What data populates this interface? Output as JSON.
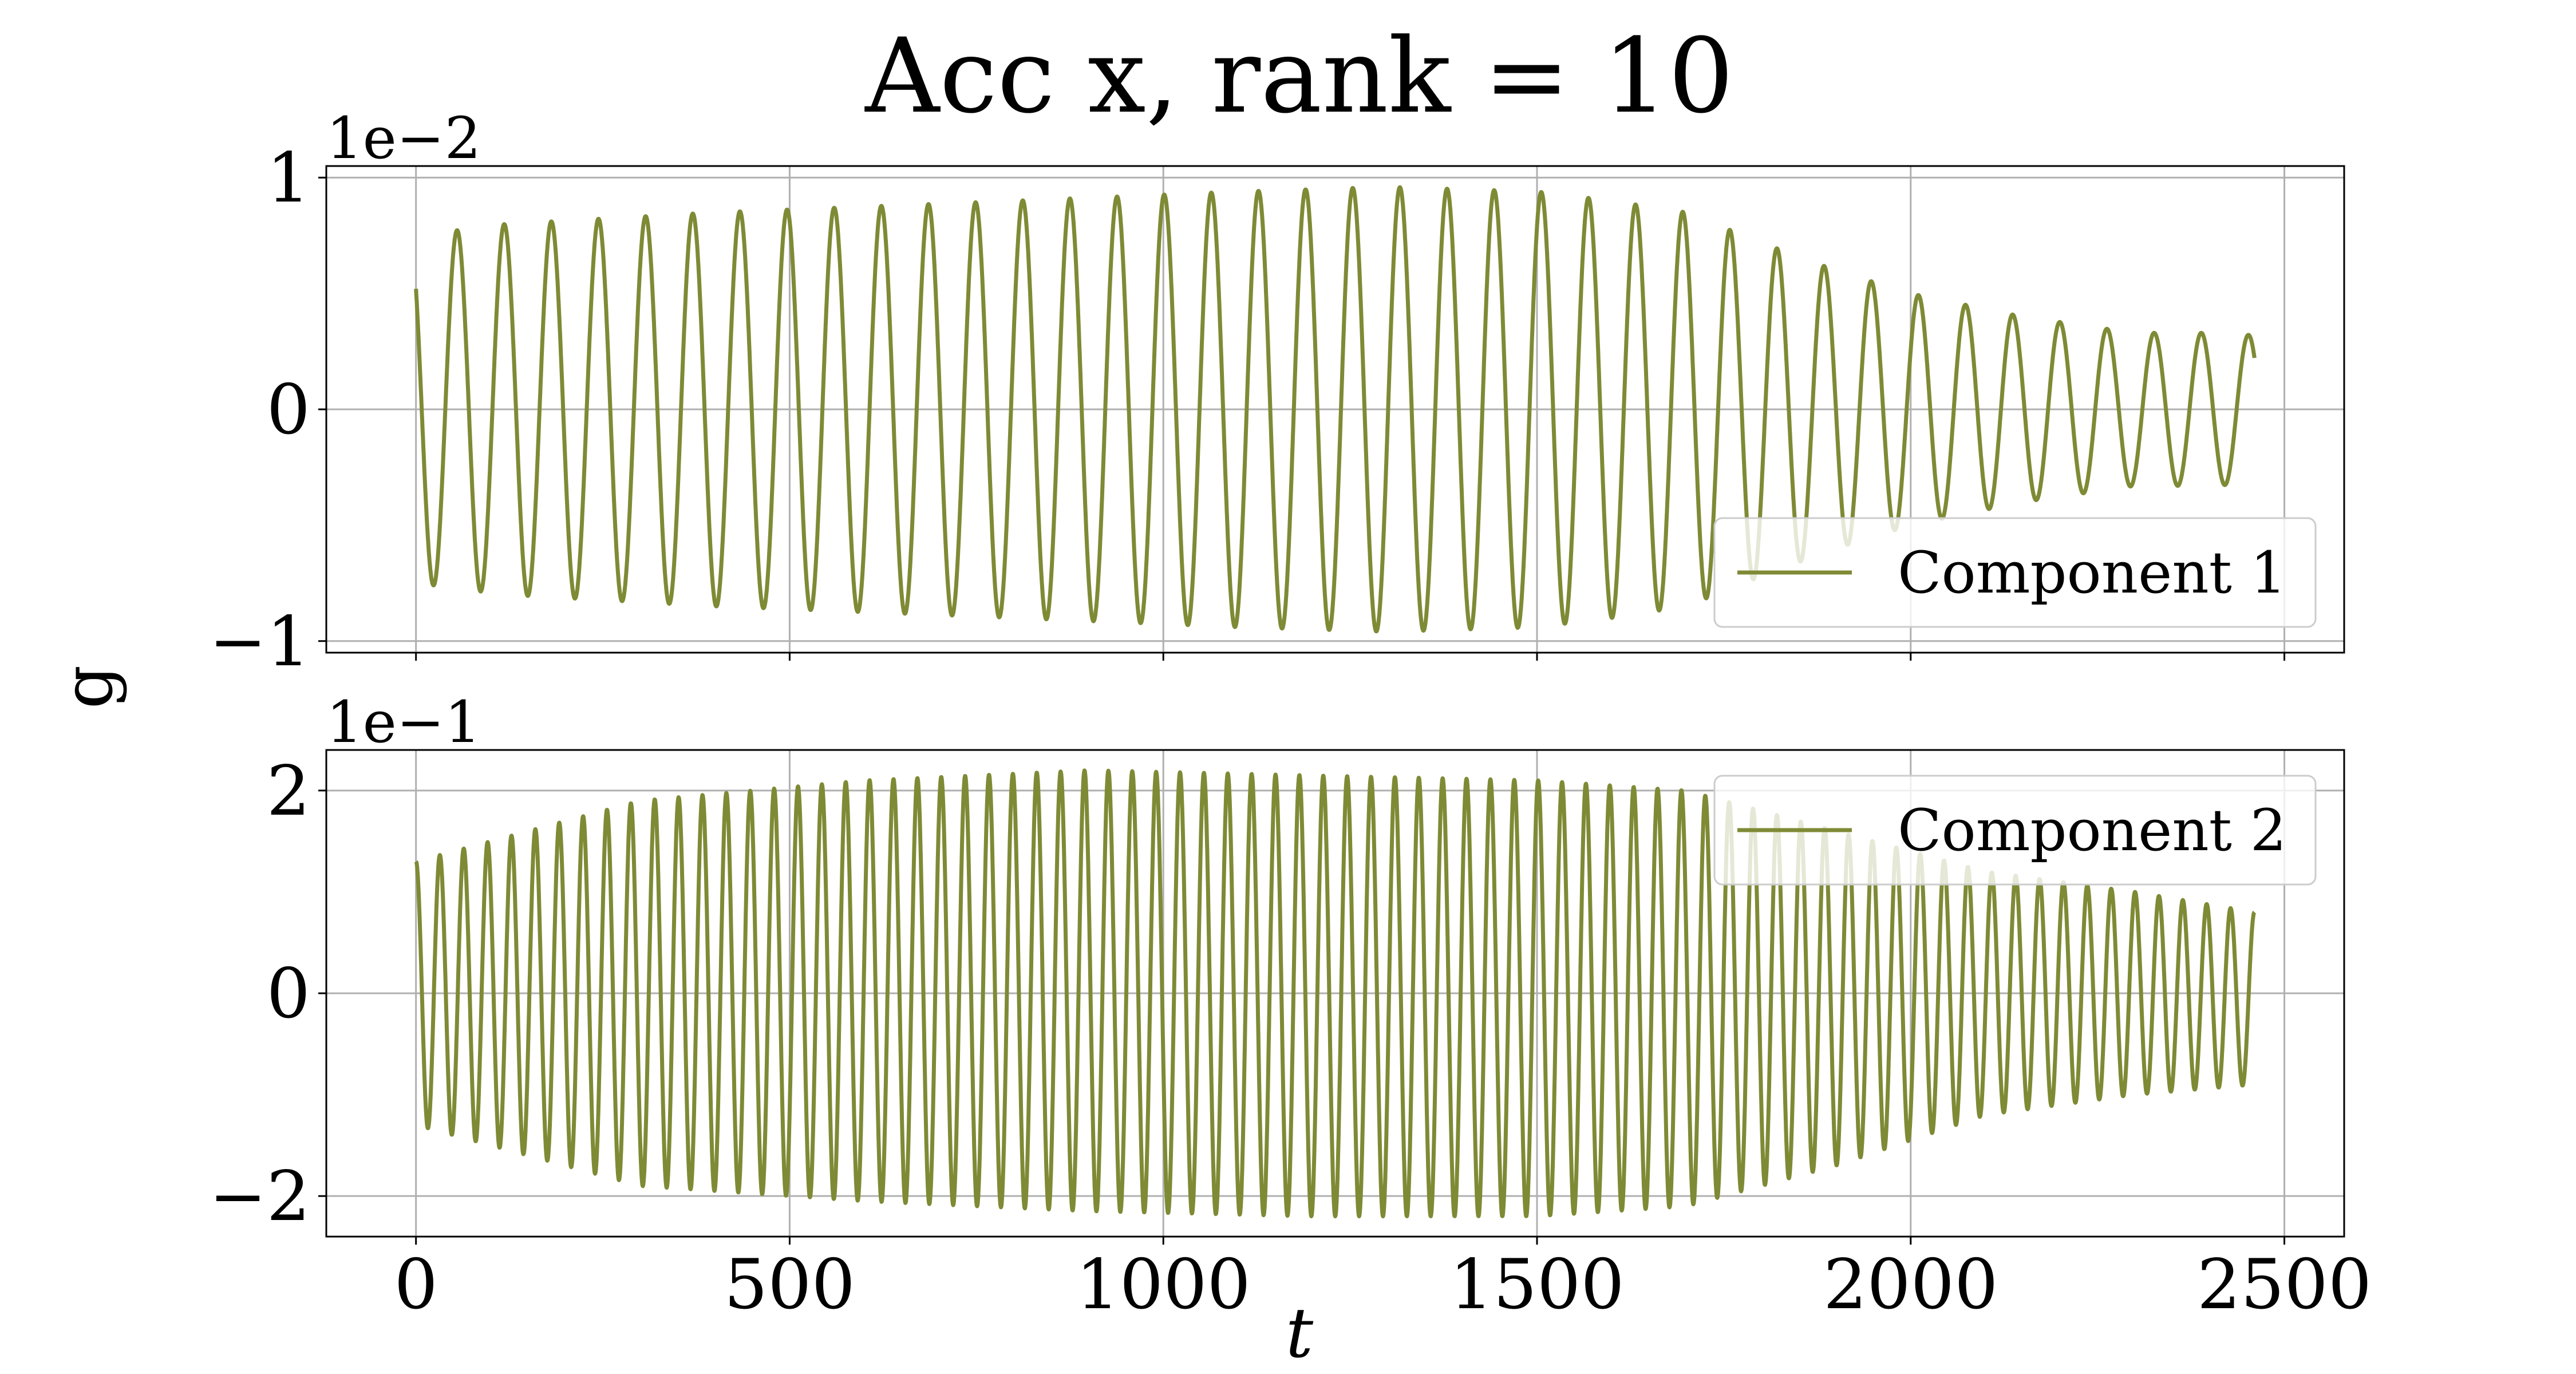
{
  "chart_data": {
    "type": "line",
    "title": "Acc x, rank = 10",
    "xlabel": "t",
    "ylabel": "g",
    "xlim": [
      -120,
      2580
    ],
    "xticks": [
      0,
      500,
      1000,
      1500,
      2000,
      2500
    ],
    "xtick_labels": [
      "0",
      "500",
      "1000",
      "1500",
      "2000",
      "2500"
    ],
    "grid": true,
    "line_color": "#7f8a35",
    "panels": [
      {
        "offset_label": "1e−2",
        "ylim": [
          -1.05,
          1.05
        ],
        "yticks": [
          -1,
          0,
          1
        ],
        "ytick_labels": [
          "−1",
          "0",
          "1"
        ],
        "legend": "lower-right",
        "series": {
          "name": "Component 1",
          "t_range": [
            0,
            2460
          ],
          "n_cycles": 39,
          "start_value": 0.52,
          "end_value": -0.32,
          "envelope": {
            "t": [
              0,
              120,
              400,
              800,
              1100,
              1300,
              1500,
              1600,
              1700,
              1800,
              1900,
              2000,
              2150,
              2300,
              2400,
              2460
            ],
            "amplitude": [
              0.75,
              0.8,
              0.85,
              0.9,
              0.94,
              0.96,
              0.94,
              0.9,
              0.85,
              0.72,
              0.6,
              0.5,
              0.4,
              0.33,
              0.33,
              0.32
            ]
          }
        }
      },
      {
        "offset_label": "1e−1",
        "ylim": [
          -2.4,
          2.4
        ],
        "yticks": [
          -2,
          0,
          2
        ],
        "ytick_labels": [
          "−2",
          "0",
          "2"
        ],
        "legend": "upper-right",
        "series": {
          "name": "Component 2",
          "t_range": [
            0,
            2460
          ],
          "n_cycles": 77,
          "start_value": 1.3,
          "end_value": 0.7,
          "envelope": {
            "t": [
              0,
              100,
              300,
              600,
              900,
              1200,
              1500,
              1700,
              1900,
              2100,
              2300,
              2460
            ],
            "upper": [
              1.3,
              1.5,
              1.9,
              2.1,
              2.2,
              2.15,
              2.1,
              2.0,
              1.6,
              1.2,
              1.0,
              0.8
            ],
            "lower": [
              -1.3,
              -1.5,
              -1.9,
              -2.05,
              -2.15,
              -2.2,
              -2.2,
              -2.1,
              -1.7,
              -1.2,
              -1.0,
              -0.9
            ]
          }
        }
      }
    ]
  }
}
